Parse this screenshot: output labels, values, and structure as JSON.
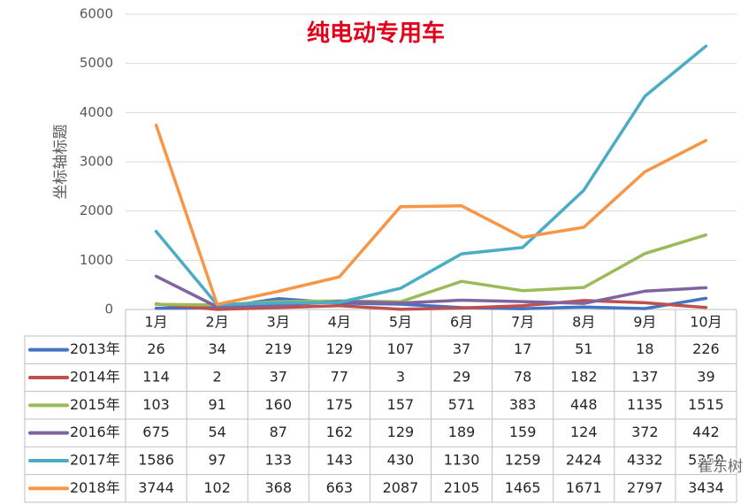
{
  "chart_data": {
    "type": "line",
    "title": "纯电动专用车",
    "xlabel": "",
    "ylabel": "坐标轴标题",
    "ylim": [
      0,
      6000
    ],
    "yticks": [
      0,
      1000,
      2000,
      3000,
      4000,
      5000,
      6000
    ],
    "grid": true,
    "legend": "bottom",
    "categories": [
      "1月",
      "2月",
      "3月",
      "4月",
      "5月",
      "6月",
      "7月",
      "8月",
      "9月",
      "10月"
    ],
    "series": [
      {
        "name": "2013年",
        "color": "#4472C4",
        "values": [
          26,
          34,
          219,
          129,
          107,
          37,
          17,
          51,
          18,
          226
        ]
      },
      {
        "name": "2014年",
        "color": "#C0504D",
        "values": [
          114,
          2,
          37,
          77,
          3,
          29,
          78,
          182,
          137,
          39
        ]
      },
      {
        "name": "2015年",
        "color": "#9BBB59",
        "values": [
          103,
          91,
          160,
          175,
          157,
          571,
          383,
          448,
          1135,
          1515
        ]
      },
      {
        "name": "2016年",
        "color": "#8064A2",
        "values": [
          675,
          54,
          87,
          162,
          129,
          189,
          159,
          124,
          372,
          442
        ]
      },
      {
        "name": "2017年",
        "color": "#4BACC6",
        "values": [
          1586,
          97,
          133,
          143,
          430,
          1130,
          1259,
          2424,
          4332,
          5350
        ]
      },
      {
        "name": "2018年",
        "color": "#F79646",
        "values": [
          3744,
          102,
          368,
          663,
          2087,
          2105,
          1465,
          1671,
          2797,
          3434
        ]
      }
    ]
  },
  "watermark": "崔东树"
}
